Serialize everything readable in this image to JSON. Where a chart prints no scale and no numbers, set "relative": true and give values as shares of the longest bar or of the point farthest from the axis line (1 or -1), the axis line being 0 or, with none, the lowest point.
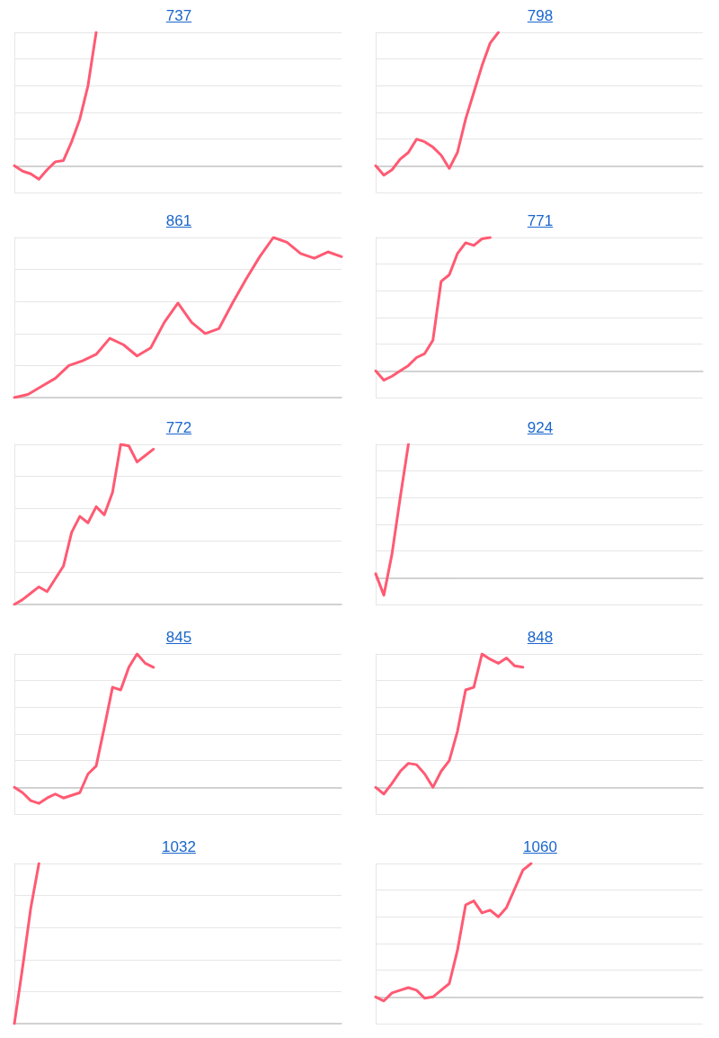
{
  "chart_data": [
    {
      "type": "line",
      "title": "737",
      "relative": true,
      "grid": "y",
      "marker": "none",
      "line_style": "solid",
      "categories": [
        null,
        null,
        null,
        null,
        null,
        null,
        null,
        null,
        null,
        null,
        null,
        null,
        null,
        null,
        null,
        null,
        null,
        null,
        null,
        null,
        null,
        null,
        null,
        null,
        null,
        null,
        null,
        null,
        null,
        null,
        null,
        null,
        null,
        null,
        null,
        null,
        null,
        null,
        null,
        null,
        null
      ],
      "series": [
        {
          "color": "#ff5a73",
          "values": [
            0,
            -0.04,
            -0.06,
            -0.1,
            -0.03,
            0.03,
            0.04,
            0.18,
            0.35,
            0.6,
            1.0,
            null,
            null,
            null,
            null,
            null,
            null,
            null,
            null,
            null,
            null,
            null,
            null,
            null,
            null,
            null,
            null,
            null,
            null,
            null,
            null,
            null,
            null,
            null,
            null,
            null,
            null,
            null,
            null,
            null,
            null
          ]
        }
      ]
    },
    {
      "type": "line",
      "title": "798",
      "relative": true,
      "grid": "y",
      "marker": "none",
      "line_style": "solid",
      "categories": [
        null,
        null,
        null,
        null,
        null,
        null,
        null,
        null,
        null,
        null,
        null,
        null,
        null,
        null,
        null,
        null,
        null,
        null,
        null,
        null,
        null,
        null,
        null,
        null,
        null,
        null,
        null,
        null,
        null,
        null,
        null,
        null,
        null,
        null,
        null,
        null,
        null,
        null,
        null,
        null,
        null
      ],
      "series": [
        {
          "color": "#ff5a73",
          "values": [
            0,
            -0.07,
            -0.03,
            0.05,
            0.1,
            0.2,
            0.18,
            0.14,
            0.08,
            -0.02,
            0.1,
            0.35,
            0.55,
            0.75,
            0.92,
            1.0,
            null,
            null,
            null,
            null,
            null,
            null,
            null,
            null,
            null,
            null,
            null,
            null,
            null,
            null,
            null,
            null,
            null,
            null,
            null,
            null,
            null,
            null,
            null,
            null,
            null
          ]
        }
      ]
    },
    {
      "type": "line",
      "title": "861",
      "relative": true,
      "grid": "y",
      "marker": "none",
      "line_style": "solid",
      "categories": [
        null,
        null,
        null,
        null,
        null,
        null,
        null,
        null,
        null,
        null,
        null,
        null,
        null,
        null,
        null,
        null,
        null,
        null,
        null,
        null,
        null,
        null,
        null,
        null,
        null
      ],
      "series": [
        {
          "color": "#ff5a73",
          "values": [
            0,
            0.02,
            0.07,
            0.12,
            0.2,
            0.23,
            0.27,
            0.37,
            0.33,
            0.26,
            0.31,
            0.47,
            0.59,
            0.47,
            0.4,
            0.43,
            0.59,
            0.74,
            0.88,
            1.0,
            0.97,
            0.9,
            0.87,
            0.91,
            0.88
          ]
        }
      ]
    },
    {
      "type": "line",
      "title": "771",
      "relative": true,
      "grid": "y",
      "marker": "none",
      "line_style": "solid",
      "categories": [
        null,
        null,
        null,
        null,
        null,
        null,
        null,
        null,
        null,
        null,
        null,
        null,
        null,
        null,
        null,
        null,
        null,
        null,
        null,
        null,
        null,
        null,
        null,
        null,
        null,
        null,
        null,
        null,
        null,
        null,
        null,
        null,
        null,
        null,
        null,
        null,
        null,
        null,
        null,
        null,
        null
      ],
      "series": [
        {
          "color": "#ff5a73",
          "values": [
            0,
            -0.07,
            -0.04,
            0,
            0.04,
            0.1,
            0.13,
            0.23,
            0.67,
            0.72,
            0.88,
            0.96,
            0.94,
            0.99,
            1.0,
            null,
            null,
            null,
            null,
            null,
            null,
            null,
            null,
            null,
            null,
            null,
            null,
            null,
            null,
            null,
            null,
            null,
            null,
            null,
            null,
            null,
            null,
            null,
            null,
            null,
            null
          ]
        }
      ]
    },
    {
      "type": "line",
      "title": "772",
      "relative": true,
      "grid": "y",
      "marker": "none",
      "line_style": "solid",
      "categories": [
        null,
        null,
        null,
        null,
        null,
        null,
        null,
        null,
        null,
        null,
        null,
        null,
        null,
        null,
        null,
        null,
        null,
        null,
        null,
        null,
        null,
        null,
        null,
        null,
        null,
        null,
        null,
        null,
        null,
        null,
        null,
        null,
        null,
        null,
        null,
        null,
        null,
        null,
        null,
        null,
        null
      ],
      "series": [
        {
          "color": "#ff5a73",
          "values": [
            0,
            0.03,
            0.07,
            0.11,
            0.08,
            0.16,
            0.24,
            0.45,
            0.55,
            0.51,
            0.61,
            0.56,
            0.7,
            1.0,
            0.99,
            0.89,
            0.93,
            0.97,
            null,
            null,
            null,
            null,
            null,
            null,
            null,
            null,
            null,
            null,
            null,
            null,
            null,
            null,
            null,
            null,
            null,
            null,
            null,
            null,
            null,
            null,
            null
          ]
        }
      ]
    },
    {
      "type": "line",
      "title": "924",
      "relative": true,
      "grid": "y",
      "marker": "none",
      "line_style": "solid",
      "categories": [
        null,
        null,
        null,
        null,
        null,
        null,
        null,
        null,
        null,
        null,
        null,
        null,
        null,
        null,
        null,
        null,
        null,
        null,
        null,
        null,
        null,
        null,
        null,
        null,
        null,
        null,
        null,
        null,
        null,
        null,
        null,
        null,
        null,
        null,
        null,
        null,
        null,
        null,
        null,
        null,
        null
      ],
      "series": [
        {
          "color": "#ff5a73",
          "values": [
            0.03,
            -0.13,
            0.18,
            0.6,
            1.0,
            null,
            null,
            null,
            null,
            null,
            null,
            null,
            null,
            null,
            null,
            null,
            null,
            null,
            null,
            null,
            null,
            null,
            null,
            null,
            null,
            null,
            null,
            null,
            null,
            null,
            null,
            null,
            null,
            null,
            null,
            null,
            null,
            null,
            null,
            null,
            null
          ]
        }
      ]
    },
    {
      "type": "line",
      "title": "845",
      "relative": true,
      "grid": "y",
      "marker": "none",
      "line_style": "solid",
      "categories": [
        null,
        null,
        null,
        null,
        null,
        null,
        null,
        null,
        null,
        null,
        null,
        null,
        null,
        null,
        null,
        null,
        null,
        null,
        null,
        null,
        null,
        null,
        null,
        null,
        null,
        null,
        null,
        null,
        null,
        null,
        null,
        null,
        null,
        null,
        null,
        null,
        null,
        null,
        null,
        null,
        null
      ],
      "series": [
        {
          "color": "#ff5a73",
          "values": [
            0,
            -0.04,
            -0.1,
            -0.12,
            -0.08,
            -0.05,
            -0.08,
            -0.06,
            -0.04,
            0.1,
            0.16,
            0.45,
            0.75,
            0.73,
            0.9,
            1.0,
            0.93,
            0.9,
            null,
            null,
            null,
            null,
            null,
            null,
            null,
            null,
            null,
            null,
            null,
            null,
            null,
            null,
            null,
            null,
            null,
            null,
            null,
            null,
            null,
            null,
            null
          ]
        }
      ]
    },
    {
      "type": "line",
      "title": "848",
      "relative": true,
      "grid": "y",
      "marker": "none",
      "line_style": "solid",
      "categories": [
        null,
        null,
        null,
        null,
        null,
        null,
        null,
        null,
        null,
        null,
        null,
        null,
        null,
        null,
        null,
        null,
        null,
        null,
        null,
        null,
        null,
        null,
        null,
        null,
        null,
        null,
        null,
        null,
        null,
        null,
        null,
        null,
        null,
        null,
        null,
        null,
        null,
        null,
        null,
        null,
        null
      ],
      "series": [
        {
          "color": "#ff5a73",
          "values": [
            0,
            -0.05,
            0.03,
            0.12,
            0.18,
            0.17,
            0.1,
            0,
            0.12,
            0.2,
            0.42,
            0.73,
            0.75,
            1.0,
            0.96,
            0.93,
            0.97,
            0.91,
            0.9,
            null,
            null,
            null,
            null,
            null,
            null,
            null,
            null,
            null,
            null,
            null,
            null,
            null,
            null,
            null,
            null,
            null,
            null,
            null,
            null,
            null,
            null
          ]
        }
      ]
    },
    {
      "type": "line",
      "title": "1032",
      "relative": true,
      "grid": "y",
      "marker": "none",
      "line_style": "solid",
      "categories": [
        null,
        null,
        null,
        null,
        null,
        null,
        null,
        null,
        null,
        null,
        null,
        null,
        null,
        null,
        null,
        null,
        null,
        null,
        null,
        null,
        null,
        null,
        null,
        null,
        null,
        null,
        null,
        null,
        null,
        null,
        null,
        null,
        null,
        null,
        null,
        null,
        null,
        null,
        null,
        null,
        null
      ],
      "series": [
        {
          "color": "#ff5a73",
          "values": [
            0,
            0.35,
            0.72,
            1.0,
            null,
            null,
            null,
            null,
            null,
            null,
            null,
            null,
            null,
            null,
            null,
            null,
            null,
            null,
            null,
            null,
            null,
            null,
            null,
            null,
            null,
            null,
            null,
            null,
            null,
            null,
            null,
            null,
            null,
            null,
            null,
            null,
            null,
            null,
            null,
            null,
            null
          ]
        }
      ]
    },
    {
      "type": "line",
      "title": "1060",
      "relative": true,
      "grid": "y",
      "marker": "none",
      "line_style": "solid",
      "categories": [
        null,
        null,
        null,
        null,
        null,
        null,
        null,
        null,
        null,
        null,
        null,
        null,
        null,
        null,
        null,
        null,
        null,
        null,
        null,
        null,
        null,
        null,
        null,
        null,
        null,
        null,
        null,
        null,
        null,
        null,
        null,
        null,
        null,
        null,
        null,
        null,
        null,
        null,
        null,
        null,
        null
      ],
      "series": [
        {
          "color": "#ff5a73",
          "values": [
            0,
            -0.03,
            0.03,
            0.05,
            0.07,
            0.05,
            -0.01,
            0,
            0.05,
            0.1,
            0.35,
            0.69,
            0.72,
            0.63,
            0.65,
            0.6,
            0.67,
            0.81,
            0.95,
            1.0,
            null,
            null,
            null,
            null,
            null,
            null,
            null,
            null,
            null,
            null,
            null,
            null,
            null,
            null,
            null,
            null,
            null,
            null,
            null,
            null,
            null
          ]
        }
      ]
    }
  ]
}
